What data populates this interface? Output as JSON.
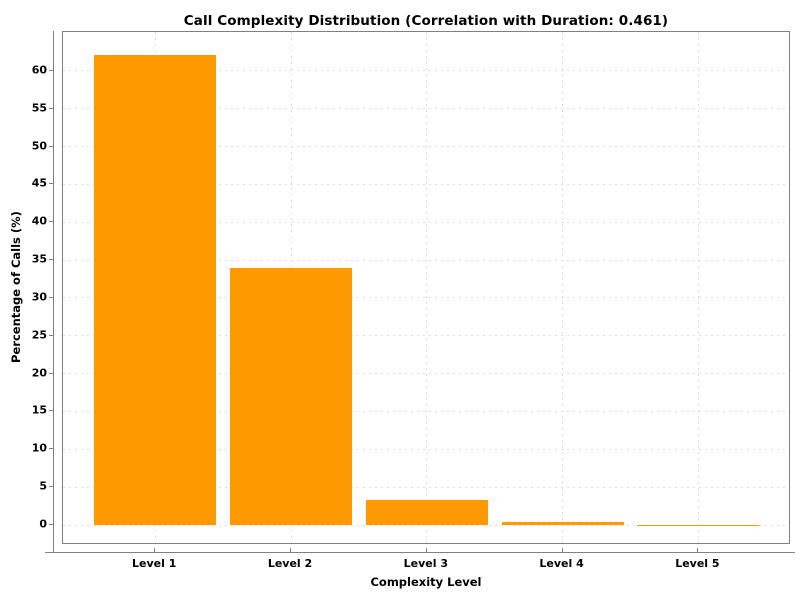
{
  "chart_data": {
    "type": "bar",
    "title": "Call Complexity Distribution (Correlation with Duration: 0.461)",
    "xlabel": "Complexity Level",
    "ylabel": "Percentage of Calls (%)",
    "categories": [
      "Level 1",
      "Level 2",
      "Level 3",
      "Level 4",
      "Level 5"
    ],
    "values": [
      62.1,
      33.9,
      3.3,
      0.4,
      0.05
    ],
    "yticks": [
      0,
      5,
      10,
      15,
      20,
      25,
      30,
      35,
      40,
      45,
      50,
      55,
      60
    ],
    "ylim": [
      -2.6,
      65.2
    ],
    "grid": true,
    "grid_style": "dashed",
    "legend": "none",
    "bar_color": "#FF9900",
    "spine_color": "#808080",
    "grid_color": "#DCDCDC",
    "text_color": "#000000",
    "background_color": "#FFFFFF"
  }
}
